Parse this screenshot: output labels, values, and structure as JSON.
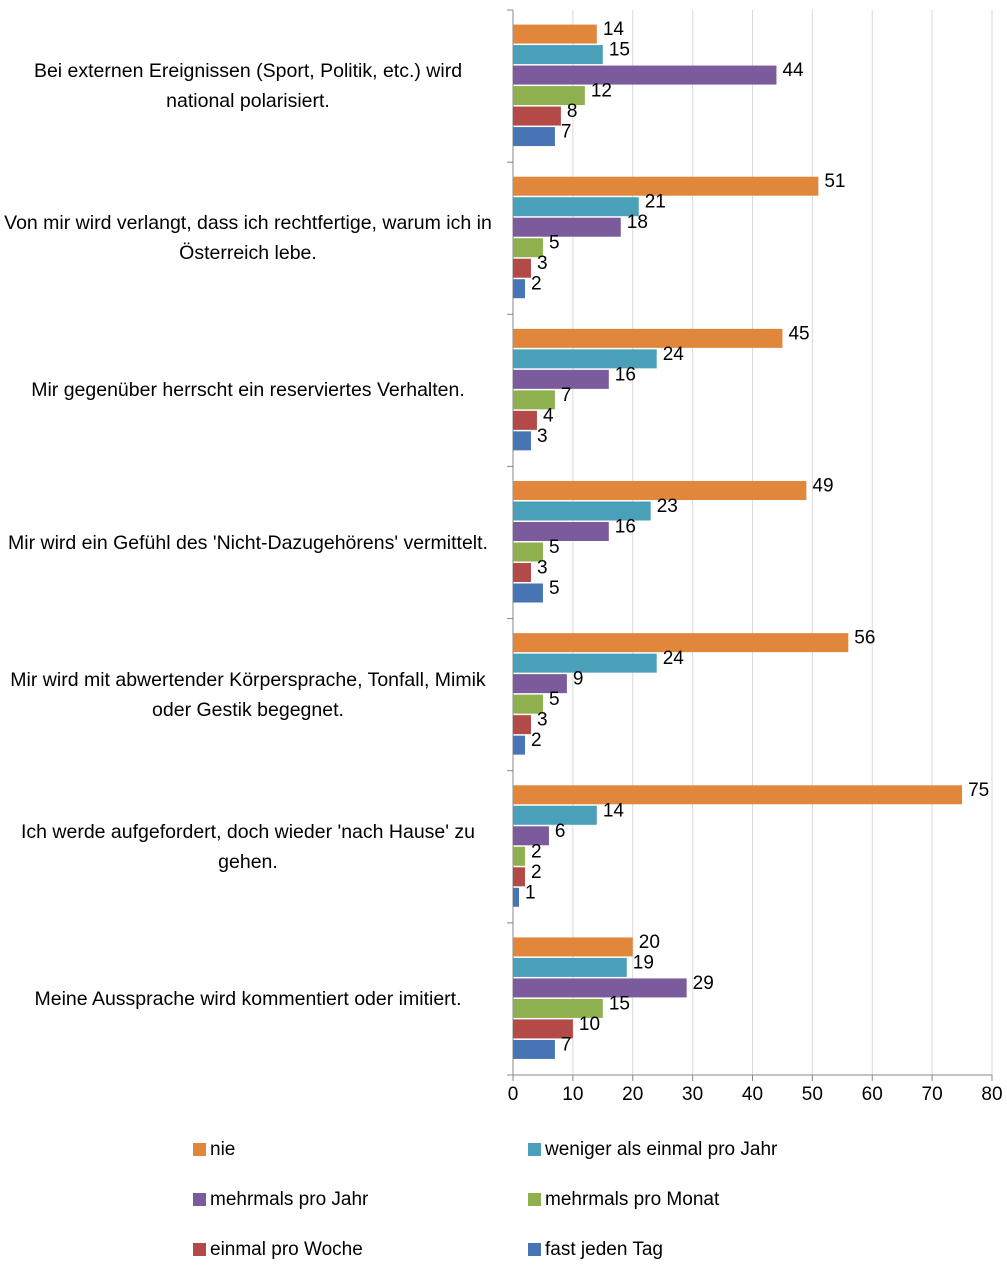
{
  "chart_data": {
    "type": "barh",
    "categories": [
      "Bei externen Ereignissen (Sport, Politik, etc.) wird national polarisiert.",
      "Von mir wird verlangt, dass ich rechtfertige, warum ich in Österreich lebe.",
      "Mir gegenüber herrscht ein reserviertes Verhalten.",
      "Mir wird ein Gefühl des 'Nicht-Dazugehörens' vermittelt.",
      "Mir wird mit abwertender Körpersprache, Tonfall, Mimik oder Gestik begegnet.",
      "Ich werde aufgefordert, doch wieder 'nach Hause' zu gehen.",
      "Meine Aussprache wird kommentiert oder imitiert."
    ],
    "series": [
      {
        "name": "nie",
        "color": "#e0873c",
        "values": [
          14,
          51,
          45,
          49,
          56,
          75,
          20
        ]
      },
      {
        "name": "weniger als einmal pro Jahr",
        "color": "#4aa0b8",
        "values": [
          15,
          21,
          24,
          23,
          24,
          14,
          19
        ]
      },
      {
        "name": "mehrmals pro Jahr",
        "color": "#7b5b9c",
        "values": [
          44,
          18,
          16,
          16,
          9,
          6,
          29
        ]
      },
      {
        "name": "mehrmals pro Monat",
        "color": "#8fb04e",
        "values": [
          12,
          5,
          7,
          5,
          5,
          2,
          15
        ]
      },
      {
        "name": "einmal pro Woche",
        "color": "#b34a48",
        "values": [
          8,
          3,
          4,
          3,
          3,
          2,
          10
        ]
      },
      {
        "name": "fast jeden Tag",
        "color": "#4674b5",
        "values": [
          7,
          2,
          3,
          5,
          2,
          1,
          7
        ]
      }
    ],
    "xlim": [
      0,
      80
    ],
    "xticks": [
      0,
      10,
      20,
      30,
      40,
      50,
      60,
      70,
      80
    ],
    "grid": true
  }
}
